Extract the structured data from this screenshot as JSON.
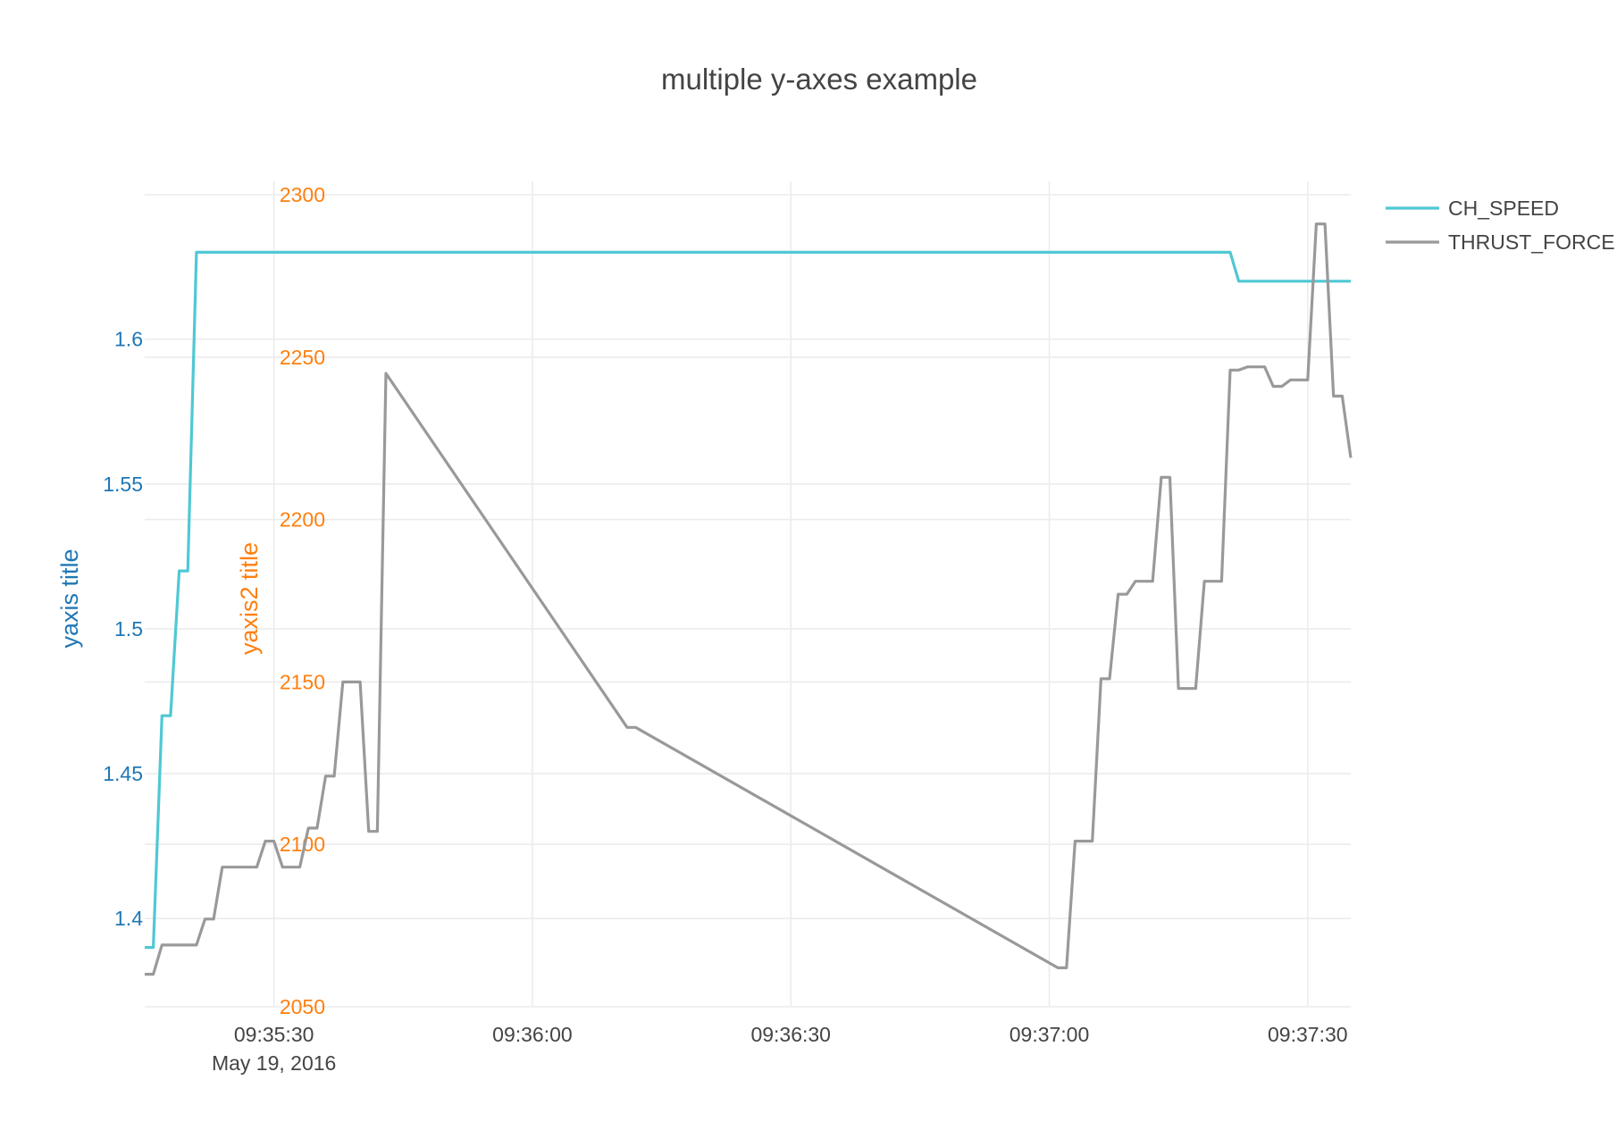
{
  "chart_data": {
    "type": "line",
    "title": "multiple y-axes example",
    "x_axis": {
      "tick_labels": [
        "09:35:30",
        "09:36:00",
        "09:36:30",
        "09:37:00",
        "09:37:30"
      ],
      "date_label": "May 19, 2016",
      "range": [
        "09:35:15",
        "09:37:35"
      ]
    },
    "y_axis": {
      "title": "yaxis title",
      "ticks": [
        1.4,
        1.45,
        1.5,
        1.55,
        1.6
      ],
      "tick_labels": [
        "1.4",
        "1.45",
        "1.5",
        "1.55",
        "1.6"
      ],
      "range": [
        1.38,
        1.64
      ],
      "color": "#1f77b4"
    },
    "y_axis2": {
      "title": "yaxis2 title",
      "ticks": [
        2050,
        2100,
        2150,
        2200,
        2250,
        2300
      ],
      "tick_labels": [
        "2050",
        "2100",
        "2150",
        "2200",
        "2250",
        "2300"
      ],
      "range": [
        2050,
        2300
      ],
      "color": "#ff7f0e"
    },
    "grid": true,
    "legend_position": "top-right",
    "series": [
      {
        "name": "CH_SPEED",
        "axis": "y",
        "color": "#4fc8d4",
        "points": [
          [
            "09:35:15",
            1.39
          ],
          [
            "09:35:16",
            1.39
          ],
          [
            "09:35:17",
            1.47
          ],
          [
            "09:35:18",
            1.47
          ],
          [
            "09:35:19",
            1.52
          ],
          [
            "09:35:20",
            1.52
          ],
          [
            "09:35:21",
            1.63
          ],
          [
            "09:37:21",
            1.63
          ],
          [
            "09:37:22",
            1.62
          ],
          [
            "09:37:35",
            1.62
          ]
        ]
      },
      {
        "name": "THRUST_FORCE",
        "axis": "y2",
        "color": "#999999",
        "points": [
          [
            "09:35:15",
            2060
          ],
          [
            "09:35:16",
            2060
          ],
          [
            "09:35:17",
            2069
          ],
          [
            "09:35:21",
            2069
          ],
          [
            "09:35:22",
            2077
          ],
          [
            "09:35:23",
            2077
          ],
          [
            "09:35:24",
            2093
          ],
          [
            "09:35:28",
            2093
          ],
          [
            "09:35:29",
            2101
          ],
          [
            "09:35:30",
            2101
          ],
          [
            "09:35:31",
            2093
          ],
          [
            "09:35:33",
            2093
          ],
          [
            "09:35:34",
            2105
          ],
          [
            "09:35:35",
            2105
          ],
          [
            "09:35:36",
            2121
          ],
          [
            "09:35:37",
            2121
          ],
          [
            "09:35:38",
            2150
          ],
          [
            "09:35:40",
            2150
          ],
          [
            "09:35:41",
            2104
          ],
          [
            "09:35:42",
            2104
          ],
          [
            "09:35:43",
            2245
          ],
          [
            "09:36:11",
            2136
          ],
          [
            "09:36:12",
            2136
          ],
          [
            "09:37:01",
            2062
          ],
          [
            "09:37:02",
            2062
          ],
          [
            "09:37:03",
            2101
          ],
          [
            "09:37:05",
            2101
          ],
          [
            "09:37:06",
            2151
          ],
          [
            "09:37:07",
            2151
          ],
          [
            "09:37:08",
            2177
          ],
          [
            "09:37:09",
            2177
          ],
          [
            "09:37:10",
            2181
          ],
          [
            "09:37:12",
            2181
          ],
          [
            "09:37:13",
            2213
          ],
          [
            "09:37:14",
            2213
          ],
          [
            "09:37:15",
            2148
          ],
          [
            "09:37:17",
            2148
          ],
          [
            "09:37:18",
            2181
          ],
          [
            "09:37:20",
            2181
          ],
          [
            "09:37:21",
            2246
          ],
          [
            "09:37:22",
            2246
          ],
          [
            "09:37:23",
            2247
          ],
          [
            "09:37:25",
            2247
          ],
          [
            "09:37:26",
            2241
          ],
          [
            "09:37:27",
            2241
          ],
          [
            "09:37:28",
            2243
          ],
          [
            "09:37:30",
            2243
          ],
          [
            "09:37:31",
            2291
          ],
          [
            "09:37:32",
            2291
          ],
          [
            "09:37:33",
            2238
          ],
          [
            "09:37:34",
            2238
          ],
          [
            "09:37:35",
            2219
          ]
        ]
      }
    ]
  }
}
